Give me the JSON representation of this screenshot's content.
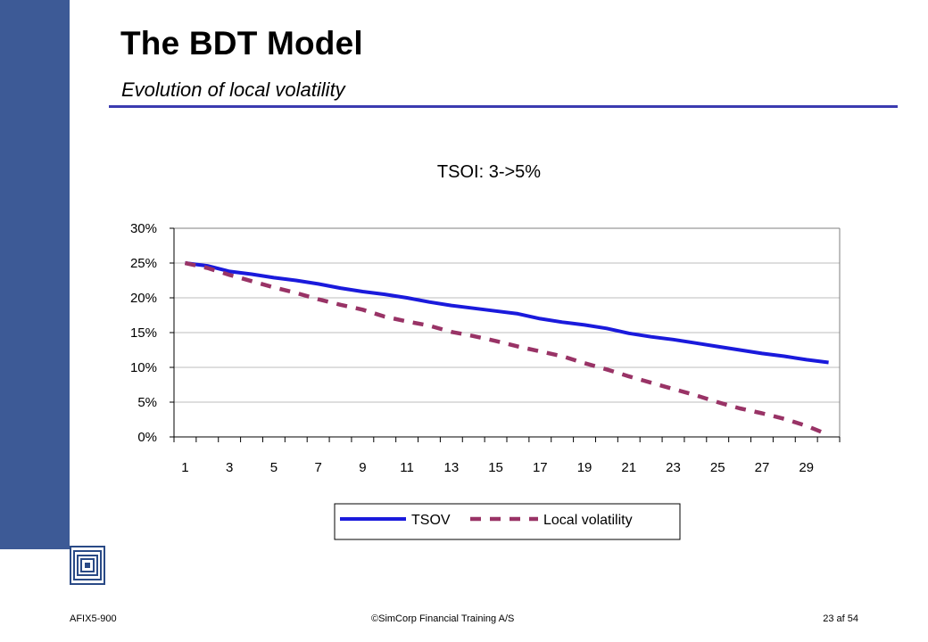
{
  "slide": {
    "title": "The BDT Model",
    "subtitle": "Evolution of local volatility"
  },
  "footer": {
    "left": "AFIX5-900",
    "center": "©SimCorp Financial Training A/S",
    "right": "23 af 54"
  },
  "colors": {
    "sidebar": "#3d5a96",
    "title_rule": "#3b3bb0",
    "tsov": "#1a1adc",
    "local_volatility": "#993366"
  },
  "chart_data": {
    "type": "line",
    "title": "TSOI: 3->5%",
    "x": [
      1,
      2,
      3,
      4,
      5,
      6,
      7,
      8,
      9,
      10,
      11,
      12,
      13,
      14,
      15,
      16,
      17,
      18,
      19,
      20,
      21,
      22,
      23,
      24,
      25,
      26,
      27,
      28,
      29,
      30
    ],
    "xtick_labels": [
      "1",
      "3",
      "5",
      "7",
      "9",
      "11",
      "13",
      "15",
      "17",
      "19",
      "21",
      "23",
      "25",
      "27",
      "29"
    ],
    "yticks": [
      0,
      5,
      10,
      15,
      20,
      25,
      30
    ],
    "ytick_labels": [
      "0%",
      "5%",
      "10%",
      "15%",
      "20%",
      "25%",
      "30%"
    ],
    "ylim": [
      0,
      30
    ],
    "grid": true,
    "legend_position": "bottom",
    "series": [
      {
        "name": "TSOV",
        "style": "solid",
        "values": [
          25.0,
          24.6,
          23.8,
          23.4,
          22.9,
          22.5,
          22.0,
          21.4,
          20.9,
          20.5,
          20.0,
          19.4,
          18.9,
          18.5,
          18.1,
          17.7,
          17.0,
          16.5,
          16.1,
          15.6,
          14.9,
          14.4,
          14.0,
          13.5,
          13.0,
          12.5,
          12.0,
          11.6,
          11.1,
          10.7
        ]
      },
      {
        "name": "Local volatility",
        "style": "dashed",
        "values": [
          25.0,
          24.3,
          23.3,
          22.4,
          21.5,
          20.7,
          19.8,
          19.0,
          18.3,
          17.3,
          16.6,
          16.0,
          15.1,
          14.5,
          13.8,
          13.0,
          12.3,
          11.6,
          10.6,
          9.7,
          8.7,
          7.8,
          6.9,
          6.0,
          5.0,
          4.1,
          3.4,
          2.6,
          1.6,
          0.3
        ]
      }
    ]
  }
}
